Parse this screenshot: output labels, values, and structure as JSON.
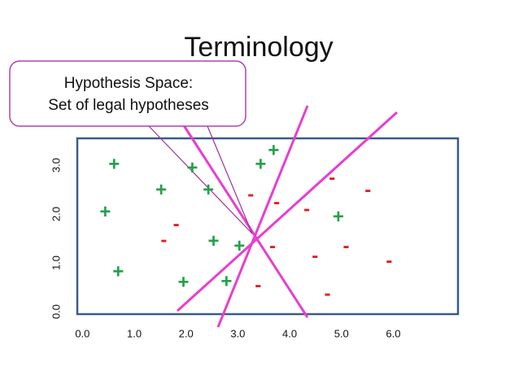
{
  "chart_data": {
    "type": "scatter",
    "title": "Terminology",
    "annotations": [
      "Hypothesis Space:",
      "Set of legal hypotheses"
    ],
    "xlim": [
      -0.1,
      7.25
    ],
    "ylim": [
      -0.05,
      3.55
    ],
    "xticks": [
      {
        "value": 0,
        "label": "0.0"
      },
      {
        "value": 1,
        "label": "1.0"
      },
      {
        "value": 2,
        "label": "2.0"
      },
      {
        "value": 3,
        "label": "3.0"
      },
      {
        "value": 4,
        "label": "4.0"
      },
      {
        "value": 5,
        "label": "5.0"
      },
      {
        "value": 6,
        "label": "6.0"
      }
    ],
    "yticks": [
      {
        "value": 0,
        "label": "0.0"
      },
      {
        "value": 1,
        "label": "1.0"
      },
      {
        "value": 2,
        "label": "2.0"
      },
      {
        "value": 3,
        "label": "3.0"
      }
    ],
    "series": [
      {
        "name": "+",
        "color": "#22a04a",
        "x": [
          0.61,
          2.12,
          1.52,
          2.43,
          3.44,
          3.69,
          0.44,
          2.53,
          3.03,
          4.94,
          0.69,
          1.95,
          2.78
        ],
        "values": [
          3.0,
          2.92,
          2.47,
          2.47,
          3.0,
          3.28,
          2.02,
          1.42,
          1.32,
          1.92,
          0.8,
          0.58,
          0.6
        ]
      },
      {
        "name": "-",
        "color": "#e02020",
        "x": [
          4.82,
          3.25,
          3.75,
          4.33,
          5.51,
          1.81,
          1.57,
          3.67,
          4.49,
          5.09,
          5.92,
          3.39,
          4.73
        ],
        "values": [
          2.72,
          2.38,
          2.22,
          2.08,
          2.47,
          1.77,
          1.45,
          1.32,
          1.12,
          1.32,
          1.02,
          0.52,
          0.35
        ]
      }
    ]
  }
}
